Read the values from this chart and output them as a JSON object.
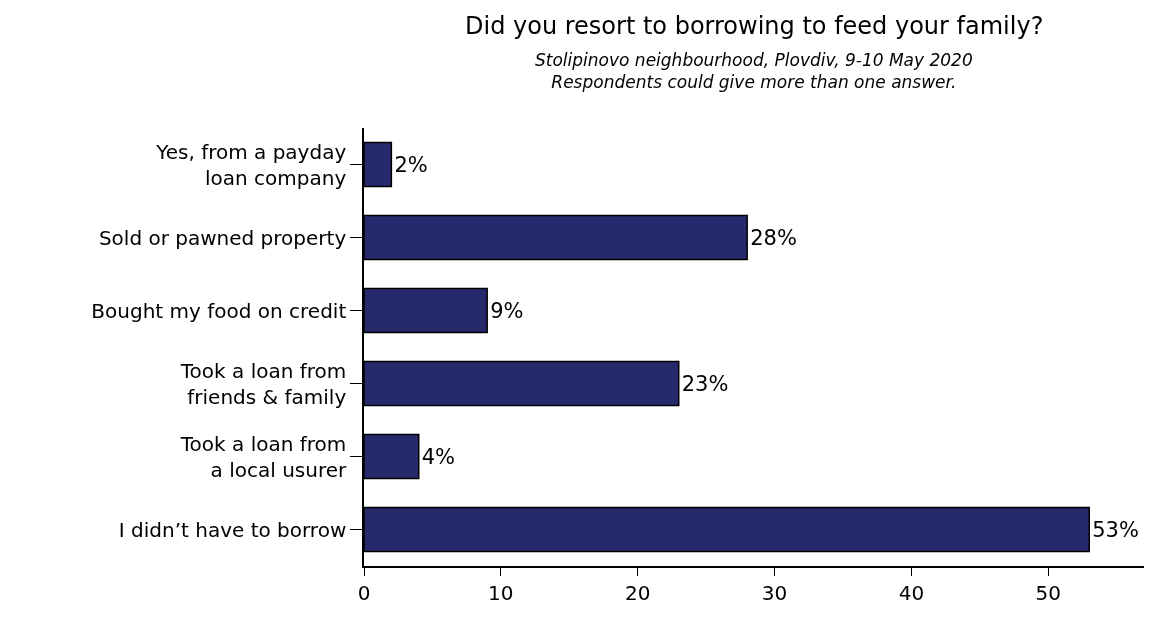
{
  "chart_data": {
    "type": "bar",
    "orientation": "horizontal",
    "title": "Did you resort to borrowing to feed your family?",
    "subtitle": "Stolipinovo neighbourhood, Plovdiv, 9-10 May 2020\nRespondents could give more than one answer.",
    "categories": [
      "Yes, from a payday\nloan company",
      "Sold or pawned property",
      "Bought my food on credit",
      "Took a loan from\nfriends & family",
      "Took a loan from\na local usurer",
      "I didn’t have to borrow"
    ],
    "values": [
      2,
      28,
      9,
      23,
      4,
      53
    ],
    "value_labels": [
      "2%",
      "28%",
      "9%",
      "23%",
      "4%",
      "53%"
    ],
    "color": "#27296d",
    "xlim": [
      0,
      57
    ],
    "xticks": [
      0,
      10,
      20,
      30,
      40,
      50
    ]
  }
}
